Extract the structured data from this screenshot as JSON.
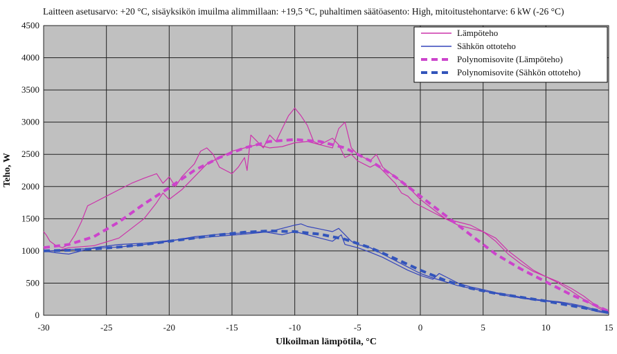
{
  "chart_data": {
    "type": "line",
    "title": "Laitteen asetusarvo: +20 °C, sisäyksikön imuilma alimmillaan: +19,5 °C, puhaltimen säätöasento: High, mitoitustehontarve: 6 kW (-26 °C)",
    "xlabel": "Ulkoilman lämpötila, °C",
    "ylabel": "Teho, W",
    "xlim": [
      -30,
      15
    ],
    "ylim": [
      0,
      4500
    ],
    "xticks": [
      -30,
      -25,
      -20,
      -15,
      -10,
      -5,
      0,
      5,
      10,
      15
    ],
    "yticks": [
      0,
      500,
      1000,
      1500,
      2000,
      2500,
      3000,
      3500,
      4000,
      4500
    ],
    "grid": true,
    "plot_background": "#c0c0c0",
    "legend_position": "top-right",
    "series": [
      {
        "name": "Lämpöteho",
        "color": "#cc33aa",
        "style": "solid",
        "points": [
          [
            -30,
            1300
          ],
          [
            -29.8,
            1250
          ],
          [
            -29.5,
            1150
          ],
          [
            -29,
            1080
          ],
          [
            -28.5,
            1050
          ],
          [
            -28,
            1100
          ],
          [
            -27.5,
            1250
          ],
          [
            -27,
            1450
          ],
          [
            -26.5,
            1700
          ],
          [
            -26,
            1750
          ],
          [
            -25,
            1850
          ],
          [
            -24,
            1950
          ],
          [
            -23,
            2050
          ],
          [
            -22,
            2130
          ],
          [
            -21,
            2200
          ],
          [
            -20.5,
            2050
          ],
          [
            -20,
            2150
          ],
          [
            -19.5,
            2000
          ],
          [
            -19,
            2150
          ],
          [
            -18.5,
            2250
          ],
          [
            -18,
            2350
          ],
          [
            -17.5,
            2550
          ],
          [
            -17,
            2600
          ],
          [
            -16.5,
            2500
          ],
          [
            -16,
            2300
          ],
          [
            -15.5,
            2250
          ],
          [
            -15,
            2200
          ],
          [
            -14.5,
            2300
          ],
          [
            -14,
            2450
          ],
          [
            -13.8,
            2250
          ],
          [
            -13.5,
            2800
          ],
          [
            -13,
            2700
          ],
          [
            -12.5,
            2600
          ],
          [
            -12,
            2800
          ],
          [
            -11.5,
            2700
          ],
          [
            -11,
            2900
          ],
          [
            -10.5,
            3100
          ],
          [
            -10,
            3220
          ],
          [
            -9.5,
            3100
          ],
          [
            -9,
            2950
          ],
          [
            -8.5,
            2700
          ],
          [
            -8,
            2650
          ],
          [
            -7.5,
            2700
          ],
          [
            -7,
            2750
          ],
          [
            -6.5,
            2650
          ],
          [
            -6,
            2450
          ],
          [
            -5.5,
            2500
          ],
          [
            -5,
            2400
          ],
          [
            -4.5,
            2350
          ],
          [
            -4,
            2300
          ],
          [
            -3.5,
            2350
          ],
          [
            -3,
            2250
          ],
          [
            -2.5,
            2150
          ],
          [
            -2,
            2050
          ],
          [
            -1.5,
            1900
          ],
          [
            -1,
            1850
          ],
          [
            -0.5,
            1750
          ],
          [
            0,
            1700
          ],
          [
            0.5,
            1650
          ],
          [
            1,
            1600
          ],
          [
            1.5,
            1550
          ],
          [
            2,
            1500
          ],
          [
            3,
            1400
          ],
          [
            4,
            1350
          ],
          [
            5,
            1300
          ],
          [
            6,
            1200
          ],
          [
            7,
            1000
          ],
          [
            8,
            850
          ],
          [
            9,
            700
          ],
          [
            10,
            600
          ],
          [
            11,
            500
          ],
          [
            12,
            380
          ],
          [
            13,
            250
          ],
          [
            14,
            130
          ],
          [
            14.5,
            80
          ],
          [
            15,
            50
          ]
        ]
      },
      {
        "name": "Lämpöteho",
        "color": "#cc33aa",
        "style": "solid",
        "points": [
          [
            -29,
            1000
          ],
          [
            -28,
            1050
          ],
          [
            -26,
            1080
          ],
          [
            -24,
            1200
          ],
          [
            -22,
            1500
          ],
          [
            -21,
            1750
          ],
          [
            -20.5,
            1900
          ],
          [
            -20,
            1800
          ],
          [
            -19,
            1950
          ],
          [
            -18,
            2150
          ],
          [
            -17,
            2350
          ],
          [
            -16,
            2450
          ],
          [
            -15,
            2550
          ],
          [
            -14,
            2600
          ],
          [
            -13,
            2650
          ],
          [
            -12,
            2600
          ],
          [
            -11,
            2620
          ],
          [
            -10,
            2680
          ],
          [
            -9,
            2700
          ],
          [
            -8,
            2650
          ],
          [
            -7,
            2600
          ],
          [
            -6.5,
            2900
          ],
          [
            -6,
            3000
          ],
          [
            -5.5,
            2600
          ],
          [
            -5,
            2500
          ],
          [
            -4.5,
            2450
          ],
          [
            -4,
            2400
          ],
          [
            -3.5,
            2500
          ],
          [
            -3,
            2300
          ],
          [
            -2,
            2150
          ],
          [
            -1,
            2000
          ],
          [
            0,
            1800
          ],
          [
            1,
            1650
          ],
          [
            2,
            1500
          ],
          [
            3,
            1450
          ],
          [
            4,
            1400
          ],
          [
            5,
            1300
          ],
          [
            6,
            1150
          ],
          [
            7,
            950
          ],
          [
            8,
            800
          ],
          [
            9,
            680
          ],
          [
            10,
            600
          ],
          [
            11,
            520
          ],
          [
            12,
            420
          ],
          [
            13,
            300
          ],
          [
            14,
            150
          ],
          [
            15,
            60
          ]
        ]
      },
      {
        "name": "Sähkön ottoteho",
        "color": "#3344bb",
        "style": "solid",
        "points": [
          [
            -30,
            1000
          ],
          [
            -29,
            970
          ],
          [
            -28,
            950
          ],
          [
            -26,
            1050
          ],
          [
            -24,
            1100
          ],
          [
            -22,
            1120
          ],
          [
            -20,
            1160
          ],
          [
            -18,
            1200
          ],
          [
            -16,
            1230
          ],
          [
            -14,
            1260
          ],
          [
            -12,
            1300
          ],
          [
            -11,
            1350
          ],
          [
            -10,
            1400
          ],
          [
            -9.5,
            1420
          ],
          [
            -9,
            1380
          ],
          [
            -8,
            1340
          ],
          [
            -7,
            1300
          ],
          [
            -6.5,
            1350
          ],
          [
            -6,
            1250
          ],
          [
            -5.5,
            1150
          ],
          [
            -5,
            1100
          ],
          [
            -4,
            1050
          ],
          [
            -3,
            950
          ],
          [
            -2,
            850
          ],
          [
            -1,
            750
          ],
          [
            0,
            650
          ],
          [
            1,
            580
          ],
          [
            2,
            520
          ],
          [
            3,
            460
          ],
          [
            4,
            420
          ],
          [
            5,
            380
          ],
          [
            6,
            340
          ],
          [
            7,
            300
          ],
          [
            8,
            270
          ],
          [
            9,
            240
          ],
          [
            10,
            220
          ],
          [
            11,
            200
          ],
          [
            12,
            160
          ],
          [
            13,
            120
          ],
          [
            14,
            60
          ],
          [
            15,
            30
          ]
        ]
      },
      {
        "name": "Sähkön ottoteho",
        "color": "#3344bb",
        "style": "solid",
        "points": [
          [
            -29.5,
            1000
          ],
          [
            -28,
            1020
          ],
          [
            -26,
            1040
          ],
          [
            -24,
            1060
          ],
          [
            -22,
            1100
          ],
          [
            -20,
            1150
          ],
          [
            -18,
            1220
          ],
          [
            -16,
            1260
          ],
          [
            -14,
            1280
          ],
          [
            -12.5,
            1300
          ],
          [
            -11,
            1250
          ],
          [
            -10,
            1300
          ],
          [
            -9,
            1250
          ],
          [
            -8,
            1200
          ],
          [
            -7,
            1150
          ],
          [
            -6.3,
            1250
          ],
          [
            -6,
            1100
          ],
          [
            -5,
            1050
          ],
          [
            -4,
            980
          ],
          [
            -3,
            900
          ],
          [
            -2,
            800
          ],
          [
            -1,
            700
          ],
          [
            0,
            620
          ],
          [
            1,
            560
          ],
          [
            1.5,
            650
          ],
          [
            2,
            600
          ],
          [
            3,
            500
          ],
          [
            4,
            440
          ],
          [
            5,
            400
          ],
          [
            6,
            350
          ],
          [
            7,
            320
          ],
          [
            8,
            280
          ],
          [
            9,
            250
          ],
          [
            10,
            230
          ],
          [
            11,
            210
          ],
          [
            12,
            180
          ],
          [
            13,
            140
          ],
          [
            14,
            80
          ],
          [
            15,
            40
          ]
        ]
      },
      {
        "name": "Polynomisovite (Lämpöteho)",
        "color": "#cc44cc",
        "style": "dashed",
        "points": [
          [
            -30,
            1050
          ],
          [
            -28,
            1100
          ],
          [
            -26,
            1220
          ],
          [
            -24,
            1450
          ],
          [
            -22,
            1730
          ],
          [
            -20,
            1980
          ],
          [
            -18,
            2250
          ],
          [
            -16,
            2450
          ],
          [
            -14,
            2600
          ],
          [
            -12,
            2700
          ],
          [
            -10,
            2730
          ],
          [
            -8,
            2700
          ],
          [
            -6,
            2600
          ],
          [
            -4,
            2400
          ],
          [
            -2,
            2150
          ],
          [
            0,
            1850
          ],
          [
            2,
            1550
          ],
          [
            4,
            1250
          ],
          [
            6,
            950
          ],
          [
            8,
            720
          ],
          [
            10,
            520
          ],
          [
            12,
            320
          ],
          [
            14,
            150
          ],
          [
            15,
            60
          ]
        ]
      },
      {
        "name": "Polynomisovite (Sähkön ottoteho)",
        "color": "#3355bb",
        "style": "dashed",
        "points": [
          [
            -30,
            1000
          ],
          [
            -28,
            1010
          ],
          [
            -26,
            1030
          ],
          [
            -24,
            1060
          ],
          [
            -22,
            1100
          ],
          [
            -20,
            1150
          ],
          [
            -18,
            1200
          ],
          [
            -16,
            1250
          ],
          [
            -14,
            1290
          ],
          [
            -12,
            1310
          ],
          [
            -10,
            1300
          ],
          [
            -8,
            1260
          ],
          [
            -6,
            1180
          ],
          [
            -4,
            1050
          ],
          [
            -2,
            880
          ],
          [
            0,
            700
          ],
          [
            2,
            540
          ],
          [
            4,
            420
          ],
          [
            6,
            340
          ],
          [
            8,
            280
          ],
          [
            10,
            220
          ],
          [
            12,
            150
          ],
          [
            14,
            80
          ],
          [
            15,
            40
          ]
        ]
      }
    ],
    "legend": [
      {
        "label": "Lämpöteho",
        "color": "#cc33aa",
        "style": "solid"
      },
      {
        "label": "Sähkön ottoteho",
        "color": "#3344bb",
        "style": "solid"
      },
      {
        "label": "Polynomisovite (Lämpöteho)",
        "color": "#cc44cc",
        "style": "dashed"
      },
      {
        "label": "Polynomisovite (Sähkön ottoteho)",
        "color": "#3355bb",
        "style": "dashed"
      }
    ]
  }
}
